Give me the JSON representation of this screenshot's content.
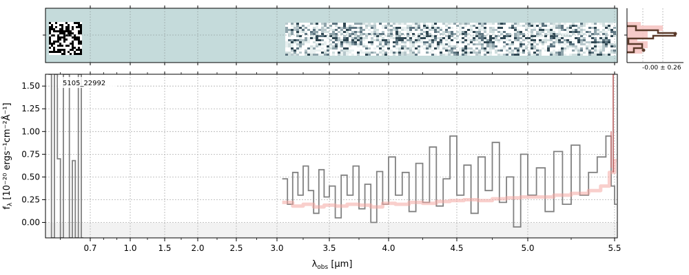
{
  "chart_data": [
    {
      "type": "heatmap",
      "panel": "2d-spectrum",
      "background_color": "#c5dbdb",
      "x_tick_labels": [
        "0.7",
        "1.0",
        "1.5",
        "2.0",
        "2.5",
        "3.0",
        "3.5",
        "4.0",
        "4.5",
        "5.0",
        "5.5"
      ]
    },
    {
      "type": "line",
      "panel": "1d-spectrum",
      "annotation": "5105_22992",
      "xlabel_main": "λ",
      "xlabel_sub": "obs",
      "xlabel_unit": " [μm]",
      "ylabel_main": "f",
      "ylabel_sub": "λ",
      "ylabel_unit": " [10⁻²⁰ ergs⁻¹cm⁻²Å⁻¹]",
      "ylim": [
        -0.17,
        1.63
      ],
      "grid": true,
      "x_ticks": [
        0.7,
        1.0,
        1.5,
        2.0,
        2.5,
        3.0,
        3.5,
        4.0,
        4.5,
        5.0,
        5.5
      ],
      "x_tick_labels": [
        "0.7",
        "1.0",
        "1.5",
        "2.0",
        "2.5",
        "3.0",
        "3.5",
        "4.0",
        "4.5",
        "5.0",
        "5.5"
      ],
      "y_ticks": [
        0.0,
        0.25,
        0.5,
        0.75,
        1.0,
        1.25,
        1.5
      ],
      "y_tick_labels": [
        "0.00",
        "0.25",
        "0.50",
        "0.75",
        "1.00",
        "1.25",
        "1.50"
      ],
      "series": [
        {
          "kind": "data",
          "color": "#808080",
          "x": [
            0.56,
            0.57,
            0.58,
            0.59,
            0.6,
            0.61,
            0.62,
            0.63,
            0.64,
            0.65,
            0.66,
            0.67
          ],
          "y": [
            1.63,
            -0.17,
            1.63,
            0.7,
            -0.17,
            1.63,
            1.63,
            -0.17,
            0.68,
            -0.17,
            1.63,
            -0.17
          ]
        },
        {
          "kind": "data",
          "color": "#808080",
          "x": [
            3.05,
            3.1,
            3.15,
            3.2,
            3.25,
            3.3,
            3.35,
            3.4,
            3.45,
            3.5,
            3.55,
            3.6,
            3.65,
            3.7,
            3.75,
            3.8,
            3.85,
            3.9,
            3.95,
            4.0,
            4.05,
            4.1,
            4.15,
            4.2,
            4.25,
            4.3,
            4.35,
            4.4,
            4.45,
            4.5,
            4.55,
            4.6,
            4.65,
            4.7,
            4.75,
            4.8,
            4.85,
            4.9,
            4.95,
            5.0,
            5.05,
            5.1,
            5.15,
            5.2,
            5.25,
            5.3,
            5.35,
            5.4,
            5.45,
            5.48,
            5.5
          ],
          "y": [
            0.48,
            0.2,
            0.55,
            0.3,
            0.62,
            0.35,
            0.1,
            0.58,
            0.28,
            0.4,
            0.05,
            0.52,
            0.3,
            0.62,
            0.15,
            0.42,
            0.0,
            0.56,
            0.2,
            0.72,
            0.3,
            0.55,
            0.12,
            0.65,
            0.22,
            0.83,
            0.18,
            0.48,
            0.95,
            0.3,
            0.63,
            0.1,
            0.72,
            0.35,
            0.88,
            0.22,
            0.5,
            -0.05,
            0.75,
            0.3,
            0.6,
            0.12,
            0.78,
            0.2,
            0.85,
            0.3,
            0.55,
            0.72,
            0.95,
            0.4,
            0.2
          ]
        },
        {
          "kind": "model",
          "color": "#f4a7a3",
          "x": [
            3.05,
            3.15,
            3.25,
            3.35,
            3.45,
            3.55,
            3.65,
            3.75,
            3.85,
            3.95,
            4.05,
            4.15,
            4.25,
            4.35,
            4.45,
            4.55,
            4.65,
            4.75,
            4.85,
            4.95,
            5.05,
            5.15,
            5.25,
            5.35,
            5.42,
            5.47,
            5.5
          ],
          "y": [
            0.22,
            0.18,
            0.2,
            0.17,
            0.19,
            0.18,
            0.2,
            0.19,
            0.17,
            0.21,
            0.2,
            0.22,
            0.21,
            0.23,
            0.24,
            0.25,
            0.24,
            0.26,
            0.27,
            0.28,
            0.28,
            0.3,
            0.32,
            0.35,
            0.4,
            0.55,
            0.68
          ]
        }
      ],
      "emission_line_x": 5.5
    },
    {
      "type": "line",
      "panel": "side-histogram",
      "annotation": "-0.00 ± 0.26"
    }
  ]
}
